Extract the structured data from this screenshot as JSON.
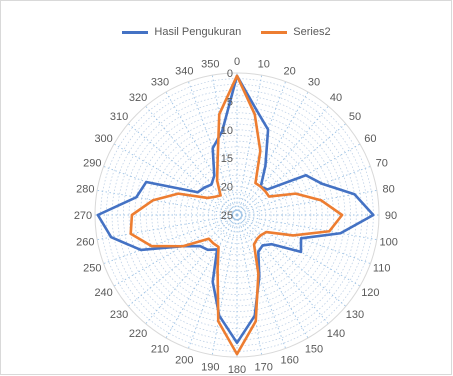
{
  "chart_data": {
    "type": "radar",
    "title": "",
    "categories": [
      "0",
      "10",
      "20",
      "30",
      "40",
      "50",
      "60",
      "70",
      "80",
      "90",
      "100",
      "110",
      "120",
      "130",
      "140",
      "150",
      "160",
      "170",
      "180",
      "190",
      "200",
      "210",
      "220",
      "230",
      "240",
      "250",
      "260",
      "270",
      "280",
      "290",
      "300",
      "310",
      "320",
      "330",
      "340",
      "350"
    ],
    "ring_labels": [
      "0",
      "5",
      "10",
      "15",
      "20",
      "25"
    ],
    "axis_reversed": true,
    "range": [
      0,
      25
    ],
    "grid": true,
    "legend_position": "top",
    "series": [
      {
        "name": "Hasil Pengukuran",
        "color": "#4472C4",
        "values": [
          0.5,
          6,
          9,
          15,
          18.5,
          18,
          11,
          9,
          4,
          1,
          6.5,
          13,
          12,
          17,
          18,
          17.5,
          13.5,
          7,
          2.5,
          7,
          12.5,
          18,
          17,
          16.5,
          14,
          7,
          2.5,
          0.5,
          7,
          8,
          17,
          17.5,
          18,
          17,
          12.5,
          10
        ]
      },
      {
        "name": "Series2",
        "color": "#ED7D31",
        "values": [
          0.5,
          7,
          13,
          18.5,
          18.5,
          18.5,
          18.5,
          14,
          10,
          6.5,
          8.5,
          14.5,
          19,
          19.5,
          19.5,
          19,
          14,
          6,
          0.5,
          6,
          15,
          18.5,
          18.5,
          18.5,
          14,
          9,
          6,
          6.5,
          10,
          14,
          19,
          20,
          20.5,
          18,
          15,
          7
        ]
      }
    ]
  }
}
